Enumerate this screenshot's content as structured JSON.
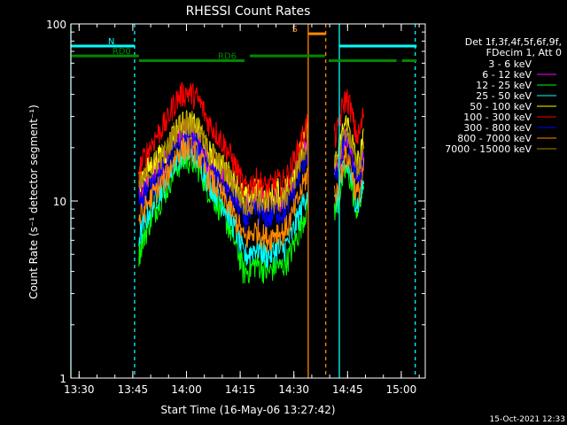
{
  "chart_data": {
    "type": "line",
    "title": "RHESSI Count Rates",
    "xlabel": "Start Time (16-May-06 13:27:42)",
    "ylabel": "Count Rate (s⁻¹ detector segment⁻¹)",
    "x_unit": "minutes after 13:27:42",
    "xlim": [
      0,
      99
    ],
    "ylim": [
      1,
      100
    ],
    "y_scale": "log",
    "x_ticks": [
      "13:30",
      "13:45",
      "14:00",
      "14:15",
      "14:30",
      "14:45",
      "15:00"
    ],
    "x_tick_values": [
      2.3,
      17.3,
      32.3,
      47.3,
      62.3,
      77.3,
      92.3
    ],
    "y_ticks": [
      "1",
      "10",
      "100"
    ],
    "y_tick_values": [
      1,
      10,
      100
    ],
    "legend_header": [
      "Det 1f,3f,4f,5f,6f,9f,",
      "FDecim 1, Att 0"
    ],
    "legend_position": "right",
    "series": [
      {
        "name": "3 - 6 keV",
        "color": "#000000",
        "draw_color": "#000000",
        "offset": 0.0,
        "peak": 14,
        "floor": 2.8,
        "g2": 12
      },
      {
        "name": "6 - 12 keV",
        "color": "#ff00ff",
        "draw_color": "#ff00ff",
        "offset": 0.0,
        "peak": 25,
        "floor": 10,
        "g2": 22
      },
      {
        "name": "12 - 25 keV",
        "color": "#00ff00",
        "draw_color": "#00ff00",
        "offset": 0.0,
        "peak": 17,
        "floor": 4.2,
        "g2": 14
      },
      {
        "name": "25 - 50 keV",
        "color": "#00ffff",
        "draw_color": "#00ffff",
        "offset": 0.0,
        "peak": 19,
        "floor": 5.2,
        "g2": 15
      },
      {
        "name": "50 - 100 keV",
        "color": "#ffff00",
        "draw_color": "#ffff00",
        "offset": 0.0,
        "peak": 28,
        "floor": 11,
        "g2": 26
      },
      {
        "name": "100 - 300 keV",
        "color": "#ff0000",
        "draw_color": "#ff0000",
        "offset": 0.0,
        "peak": 41,
        "floor": 12.5,
        "g2": 36
      },
      {
        "name": "300 - 800 keV",
        "color": "#0000ff",
        "draw_color": "#0000ff",
        "offset": 0.0,
        "peak": 22,
        "floor": 8.5,
        "g2": 21
      },
      {
        "name": "800 - 7000 keV",
        "color": "#ff8800",
        "draw_color": "#ff8800",
        "offset": 0.0,
        "peak": 20,
        "floor": 6.5,
        "g2": 17
      },
      {
        "name": "7000 - 15000 keV",
        "color": "#aa8800",
        "draw_color": "#aa8800",
        "offset": 0.0,
        "peak": 28,
        "floor": 10,
        "g2": 24
      }
    ],
    "vertical_markers": [
      {
        "x": 0.0,
        "style": "solid",
        "color": "#00ffff"
      },
      {
        "x": 17.8,
        "style": "dashed",
        "color": "#00ffff"
      },
      {
        "x": 66.3,
        "style": "solid",
        "color": "#ff8800"
      },
      {
        "x": 71.2,
        "style": "dashed",
        "color": "#ff8800"
      },
      {
        "x": 75.0,
        "style": "solid",
        "color": "#00ffff"
      },
      {
        "x": 96.2,
        "style": "dashed",
        "color": "#00ffff"
      }
    ],
    "state_bars": [
      {
        "label": "N",
        "color": "#00ffff",
        "y": 75,
        "x_start": 0.0,
        "x_end": 17.8,
        "x_start2": 75.0,
        "x_end2": 96.6
      },
      {
        "label": "RD0",
        "color": "#008800",
        "y": 66,
        "x_start": 0.0,
        "x_end": 19,
        "x_start2": 50,
        "x_end2": 71
      },
      {
        "label": "RD6",
        "color": "#008800",
        "y": 62,
        "x_start": 19,
        "x_end": 48.5,
        "x_start2": 72,
        "x_end2": 91,
        "x_start3": 92.5,
        "x_end3": 96.6
      },
      {
        "label": "S",
        "color": "#ff8800",
        "y": 88,
        "x_start": 66.3,
        "x_end": 71.2
      }
    ]
  },
  "footer_timestamp": "15-Oct-2021 12:33"
}
